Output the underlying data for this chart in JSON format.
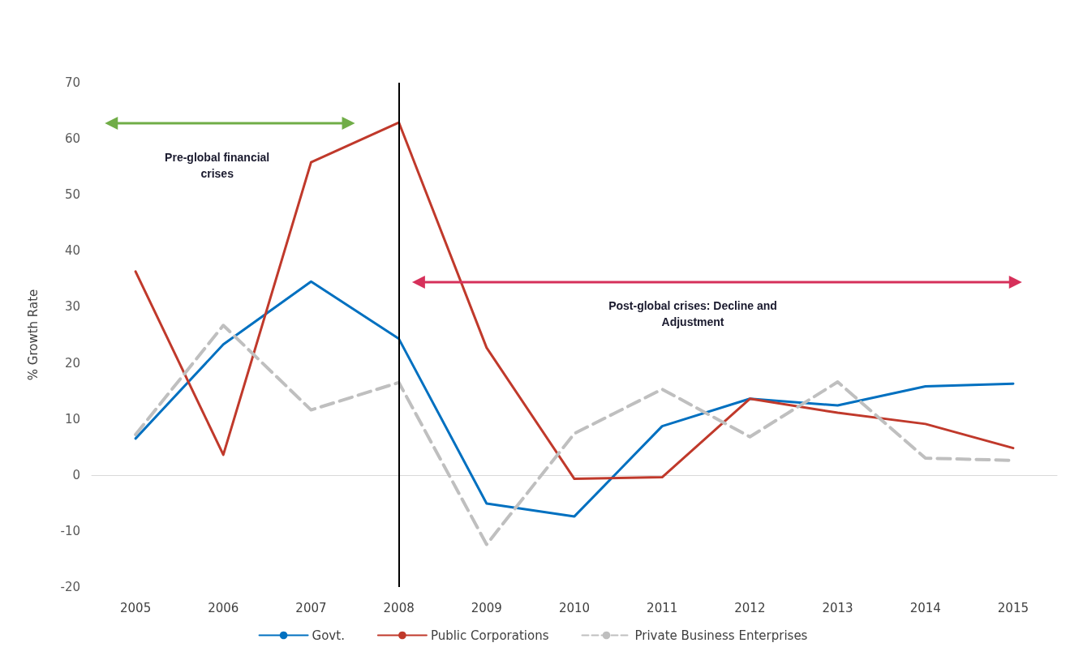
{
  "chart_data": {
    "type": "line",
    "ylabel": "% Growth Rate",
    "categories": [
      "2005",
      "2006",
      "2007",
      "2008",
      "2009",
      "2010",
      "2011",
      "2012",
      "2013",
      "2014",
      "2015"
    ],
    "series": [
      {
        "name": "Govt.",
        "color": "#0070c0",
        "values": [
          6.5,
          23.3,
          34.5,
          24.3,
          -5.1,
          -7.4,
          8.7,
          13.6,
          12.4,
          15.8,
          16.3
        ]
      },
      {
        "name": "Public Corporations",
        "color": "#c0392b",
        "values": [
          36.3,
          3.6,
          55.8,
          62.9,
          22.7,
          -0.7,
          -0.4,
          13.6,
          11.1,
          9.1,
          4.8
        ]
      },
      {
        "name": "Private Business Enterprises",
        "color": "#bfbfbf",
        "line_style": "dashed",
        "values": [
          7.2,
          26.7,
          11.6,
          16.5,
          -12.4,
          7.4,
          15.3,
          6.8,
          16.6,
          3.0,
          2.6
        ]
      }
    ],
    "ylim": [
      -20,
      70
    ],
    "yticks": [
      -20,
      -10,
      0,
      10,
      20,
      30,
      40,
      50,
      60,
      70
    ],
    "grid": false,
    "legend": "bottom",
    "marker": "none",
    "line_style": "solid",
    "ref_lines": [
      {
        "axis": "x",
        "value": "2008",
        "color": "#000000"
      }
    ],
    "annotations": [
      "Pre-global financial crises",
      "Post-global crises: Decline and Adjustment"
    ]
  }
}
